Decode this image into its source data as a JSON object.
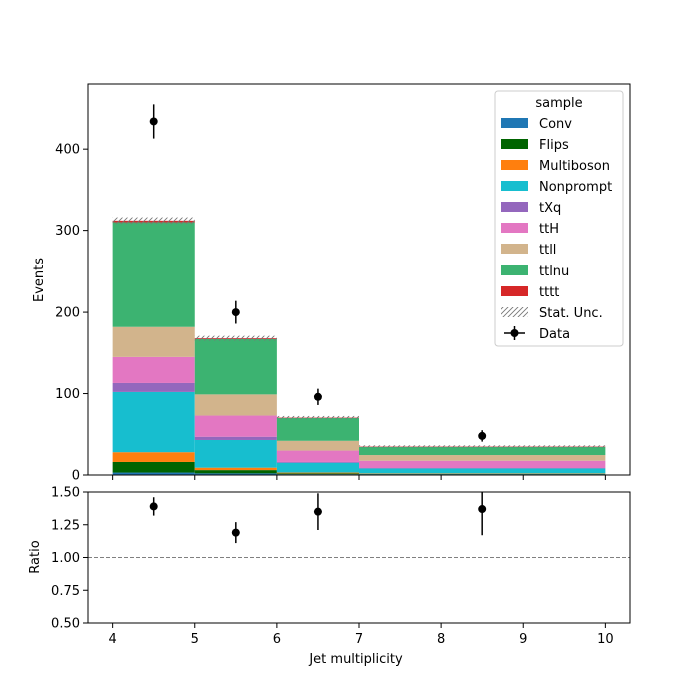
{
  "chart_data": [
    {
      "type": "bar",
      "stacked": true,
      "bin_edges": [
        4,
        5,
        6,
        7,
        10
      ],
      "xlim": [
        3.7,
        10.3
      ],
      "ylim": [
        0,
        480
      ],
      "yticks": [
        0,
        100,
        200,
        300,
        400
      ],
      "xlabel": "",
      "ylabel": "Events",
      "grid": false,
      "legend": {
        "title": "sample",
        "placement": "top-right"
      },
      "series": [
        {
          "name": "Conv",
          "color": "#1f77b4",
          "values": [
            3,
            2,
            1,
            1
          ]
        },
        {
          "name": "Flips",
          "color": "#006400",
          "values": [
            13,
            4,
            1,
            0.5
          ]
        },
        {
          "name": "Multiboson",
          "color": "#ff7f0e",
          "values": [
            12,
            3,
            1,
            0.5
          ]
        },
        {
          "name": "Nonprompt",
          "color": "#17becf",
          "values": [
            74,
            34,
            12,
            6
          ]
        },
        {
          "name": "tXq",
          "color": "#9467bd",
          "values": [
            11,
            4,
            1,
            0.5
          ]
        },
        {
          "name": "ttH",
          "color": "#e377c2",
          "values": [
            32,
            26,
            14,
            9
          ]
        },
        {
          "name": "ttll",
          "color": "#d2b48c",
          "values": [
            37,
            26,
            12,
            7
          ]
        },
        {
          "name": "ttlnu",
          "color": "#3cb371",
          "values": [
            128,
            68,
            28,
            10
          ]
        },
        {
          "name": "tttt",
          "color": "#d62728",
          "values": [
            2,
            1,
            0.5,
            0.5
          ]
        }
      ],
      "stat_unc": {
        "name": "Stat. Unc.",
        "values": [
          4,
          3,
          2,
          1.5
        ]
      },
      "data_points": {
        "name": "Data",
        "x": [
          4.5,
          5.5,
          6.5,
          8.5
        ],
        "y": [
          434,
          200,
          96,
          48
        ],
        "yerr": [
          21,
          14,
          10,
          7
        ]
      }
    },
    {
      "type": "scatter",
      "xlim": [
        3.7,
        10.3
      ],
      "ylim": [
        0.5,
        1.5
      ],
      "xticks": [
        4,
        5,
        6,
        7,
        8,
        9,
        10
      ],
      "yticks": [
        0.5,
        0.75,
        1.0,
        1.25,
        1.5
      ],
      "ytick_labels": [
        "0.50",
        "0.75",
        "1.00",
        "1.25",
        "1.50"
      ],
      "xlabel": "Jet multiplicity",
      "ylabel": "Ratio",
      "reference_line": 1.0,
      "x": [
        4.5,
        5.5,
        6.5,
        8.5
      ],
      "y": [
        1.39,
        1.19,
        1.35,
        1.37
      ],
      "yerr": [
        0.07,
        0.08,
        0.14,
        0.2
      ]
    }
  ]
}
